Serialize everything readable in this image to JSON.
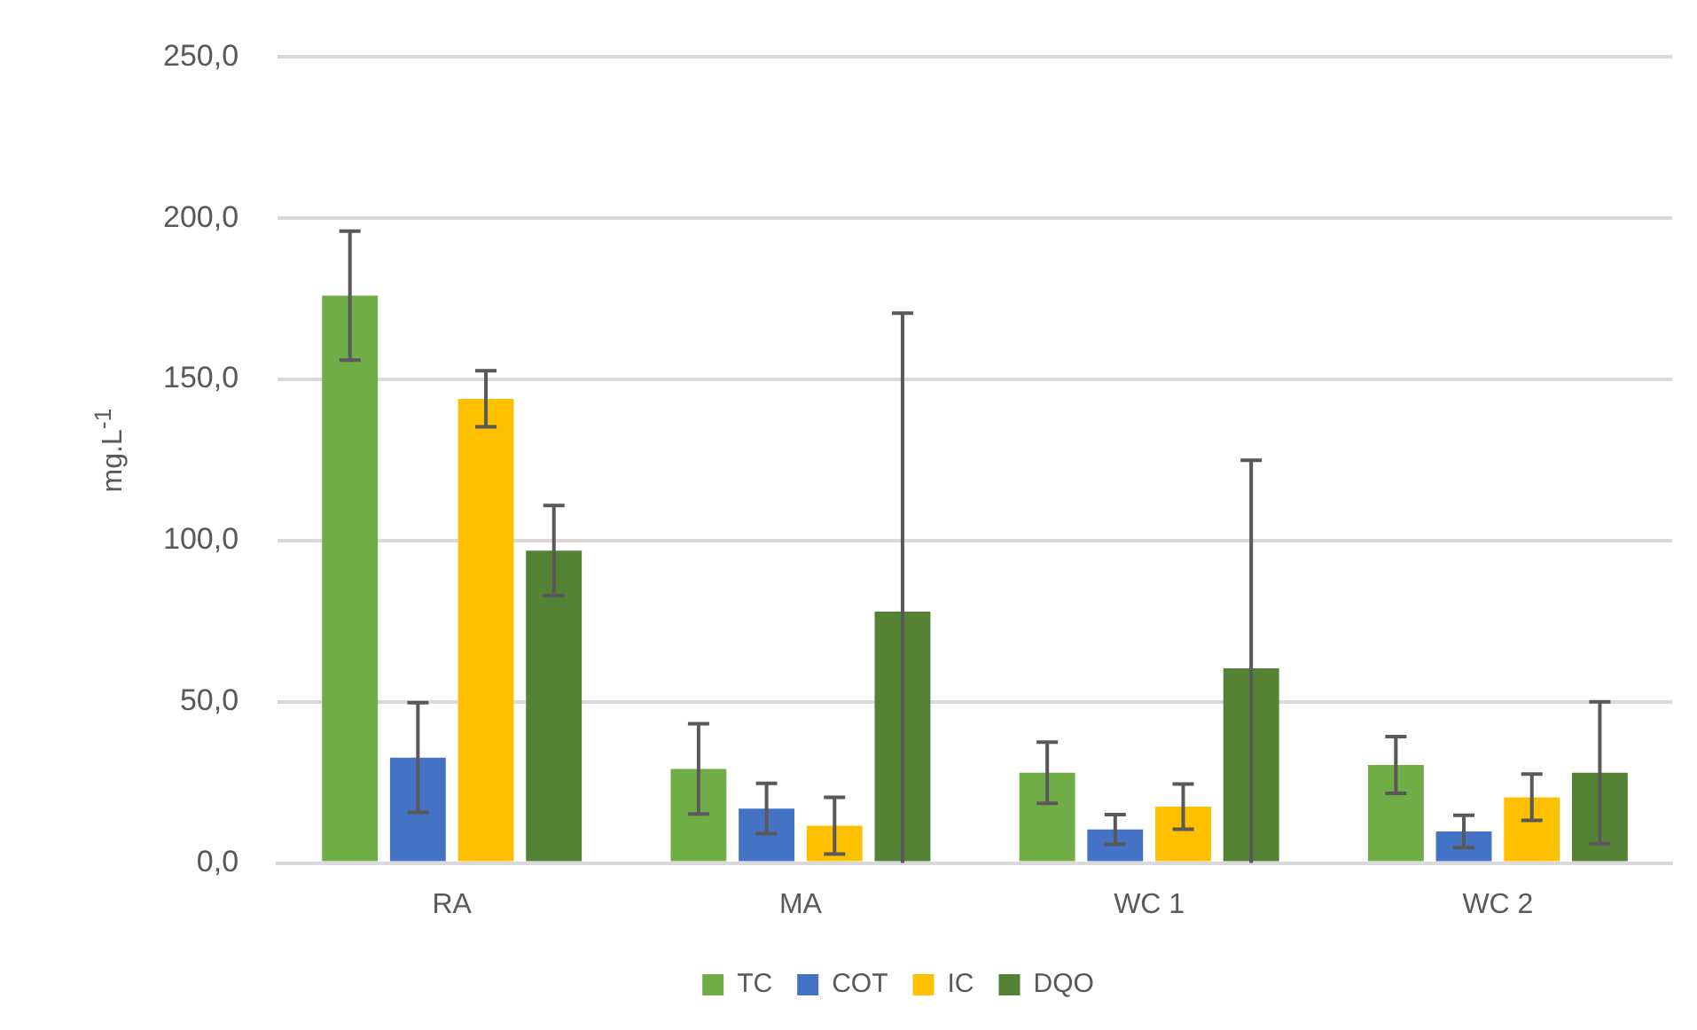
{
  "chart_data": {
    "type": "bar",
    "ylabel": "mg.L$^{-1}$",
    "categories": [
      "RA",
      "MA",
      "WC 1",
      "WC 2"
    ],
    "series": [
      {
        "name": "TC",
        "color": "#70ad47",
        "values": [
          176,
          29.2,
          28,
          30.4
        ],
        "errors": [
          20,
          14,
          9.5,
          8.8
        ]
      },
      {
        "name": "COT",
        "color": "#4472c4",
        "values": [
          32.7,
          16.9,
          10.4,
          9.8
        ],
        "errors": [
          17,
          7.8,
          4.6,
          5
        ]
      },
      {
        "name": "IC",
        "color": "#ffc000",
        "values": [
          144,
          11.6,
          17.5,
          20.4
        ],
        "errors": [
          8.7,
          8.8,
          7,
          7.2
        ]
      },
      {
        "name": "DQO",
        "color": "#548235",
        "values": [
          96.9,
          78,
          60.4,
          28
        ],
        "errors": [
          14,
          [
            0,
            170.6
          ],
          [
            0,
            124.9
          ],
          22
        ]
      }
    ],
    "ylim": [
      0,
      250
    ],
    "yticks": [
      {
        "value": 0,
        "label": "0,0"
      },
      {
        "value": 50,
        "label": "50,0"
      },
      {
        "value": 100,
        "label": "100,0"
      },
      {
        "value": 150,
        "label": "150,0"
      },
      {
        "value": 200,
        "label": "200,0"
      },
      {
        "value": 250,
        "label": "250,0"
      }
    ],
    "grid": "y",
    "legend": "bottom"
  }
}
